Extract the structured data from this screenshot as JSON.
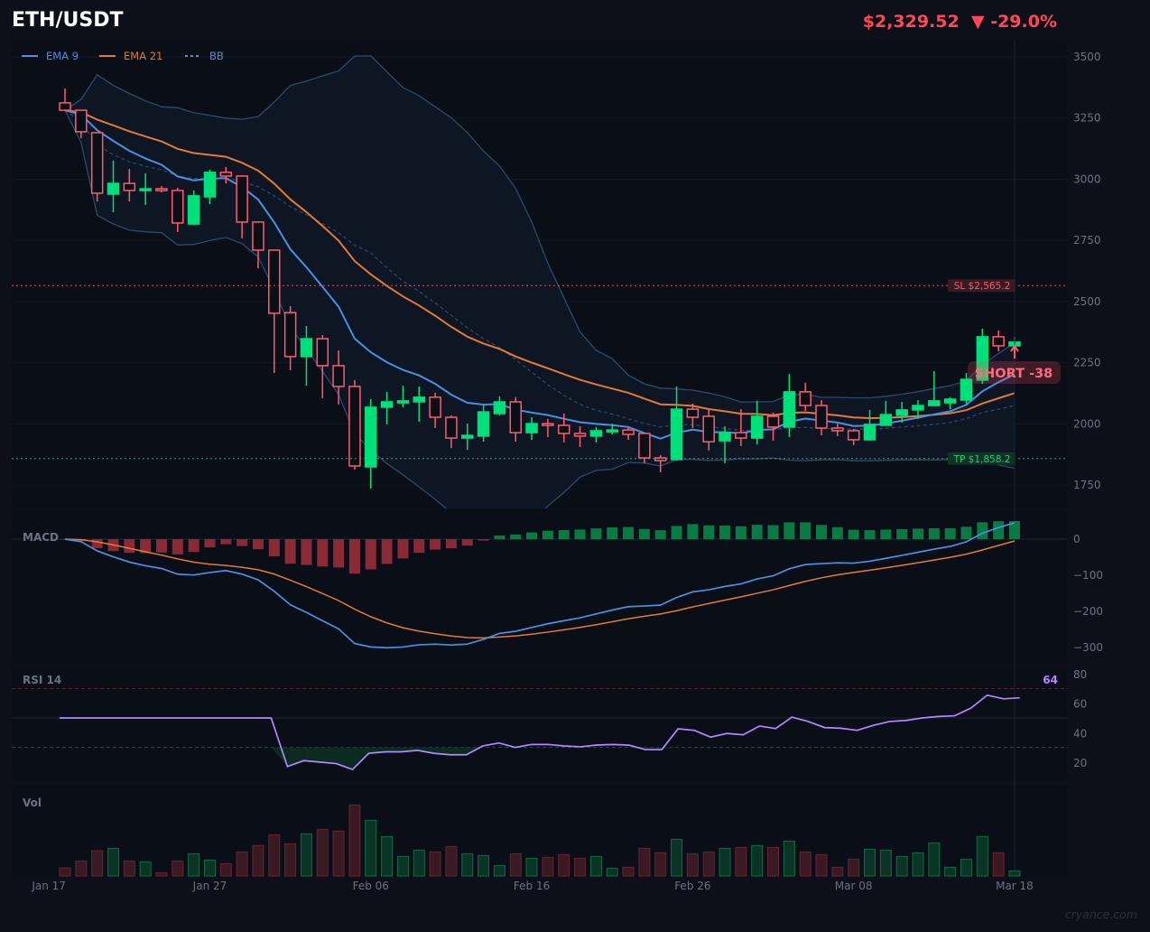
{
  "header": {
    "symbol": "ETH/USDT",
    "price": "$2,329.52",
    "change": "▼ -29.0%",
    "change_direction": "down"
  },
  "legend": [
    {
      "label": "EMA 9",
      "color": "#4a90e2",
      "style": "solid"
    },
    {
      "label": "EMA 21",
      "color": "#e07b39",
      "style": "solid"
    },
    {
      "label": "BB",
      "color": "#4a90e2",
      "style": "dashed"
    }
  ],
  "colors": {
    "bull": "#00e07a",
    "bear": "#ff5c6c",
    "rsi": "#b388ff",
    "macd": "#4a90e2",
    "signal": "#e07b39"
  },
  "watermark": "cryance.com",
  "chart_data": {
    "type": "candlestick",
    "title": "ETH/USDT",
    "x_tick_labels": [
      "Jan 17",
      "Jan 27",
      "Feb 06",
      "Feb 16",
      "Feb 26",
      "Mar 08",
      "Mar 18"
    ],
    "first_date": "Jan 18",
    "last_date": "Mar 18",
    "price_axis": {
      "ticks": [
        1750,
        2000,
        2250,
        2500,
        2750,
        3000,
        3250,
        3500
      ],
      "range": [
        1680,
        3570
      ]
    },
    "ohlc": [
      [
        3312,
        3371,
        3279,
        3282
      ],
      [
        3282,
        3282,
        3168,
        3194
      ],
      [
        3190,
        3190,
        2909,
        2943
      ],
      [
        2939,
        3076,
        2865,
        2983
      ],
      [
        2983,
        3042,
        2909,
        2954
      ],
      [
        2954,
        3024,
        2895,
        2961
      ],
      [
        2961,
        2972,
        2946,
        2954
      ],
      [
        2954,
        2965,
        2784,
        2821
      ],
      [
        2817,
        2954,
        2813,
        2932
      ],
      [
        2928,
        3039,
        2898,
        3028
      ],
      [
        3028,
        3050,
        2983,
        3013
      ],
      [
        3013,
        3016,
        2758,
        2825
      ],
      [
        2825,
        2825,
        2636,
        2710
      ],
      [
        2710,
        2710,
        2208,
        2452
      ],
      [
        2455,
        2481,
        2219,
        2275
      ],
      [
        2275,
        2400,
        2156,
        2348
      ],
      [
        2348,
        2363,
        2105,
        2238
      ],
      [
        2238,
        2300,
        2079,
        2153
      ],
      [
        2153,
        2179,
        1813,
        1828
      ],
      [
        1824,
        2101,
        1736,
        2068
      ],
      [
        2068,
        2131,
        1998,
        2090
      ],
      [
        2086,
        2156,
        2068,
        2094
      ],
      [
        2090,
        2153,
        2009,
        2109
      ],
      [
        2109,
        2127,
        1983,
        2027
      ],
      [
        2027,
        2035,
        1901,
        1942
      ],
      [
        1942,
        2001,
        1894,
        1953
      ],
      [
        1950,
        2075,
        1927,
        2049
      ],
      [
        2042,
        2112,
        2035,
        2090
      ],
      [
        2090,
        2109,
        1927,
        1964
      ],
      [
        1964,
        2027,
        1935,
        2001
      ],
      [
        2001,
        2020,
        1946,
        1994
      ],
      [
        1994,
        2042,
        1924,
        1961
      ],
      [
        1961,
        1990,
        1905,
        1950
      ],
      [
        1950,
        1987,
        1924,
        1972
      ],
      [
        1968,
        2001,
        1957,
        1975
      ],
      [
        1975,
        1987,
        1935,
        1957
      ],
      [
        1961,
        1961,
        1839,
        1861
      ],
      [
        1861,
        1872,
        1802,
        1850
      ],
      [
        1854,
        2153,
        1850,
        2060
      ],
      [
        2060,
        2083,
        1983,
        2027
      ],
      [
        2031,
        2064,
        1891,
        1927
      ],
      [
        1931,
        1990,
        1839,
        1964
      ],
      [
        1964,
        2060,
        1909,
        1942
      ],
      [
        1942,
        2094,
        1916,
        2031
      ],
      [
        2031,
        2046,
        1931,
        1987
      ],
      [
        1987,
        2204,
        1946,
        2131
      ],
      [
        2131,
        2168,
        2053,
        2075
      ],
      [
        2075,
        2097,
        1953,
        1983
      ],
      [
        1983,
        2001,
        1950,
        1972
      ],
      [
        1972,
        1979,
        1913,
        1935
      ],
      [
        1935,
        2057,
        1931,
        1998
      ],
      [
        1994,
        2094,
        1994,
        2038
      ],
      [
        2035,
        2090,
        2005,
        2057
      ],
      [
        2057,
        2097,
        2020,
        2075
      ],
      [
        2075,
        2216,
        2072,
        2094
      ],
      [
        2086,
        2109,
        2060,
        2101
      ],
      [
        2097,
        2208,
        2083,
        2182
      ],
      [
        2179,
        2389,
        2164,
        2356
      ],
      [
        2356,
        2382,
        2297,
        2319
      ],
      [
        2319,
        2356,
        2304,
        2334
      ]
    ],
    "indicators": {
      "ema_fast": 9,
      "ema_slow": 21,
      "bb_period": 20,
      "bb_mult": 2
    },
    "levels": [
      {
        "label": "SL $2,565.2",
        "value": 2565.2,
        "color": "#ff5c6c"
      },
      {
        "label": "TP $1,858.2",
        "value": 1858.2,
        "color": "#18d27a"
      }
    ],
    "signal": {
      "label": "SHORT  -38",
      "direction": "short"
    },
    "macd": {
      "label": "MACD",
      "fast": 12,
      "slow": 26,
      "signal": 9,
      "ticks": [
        0,
        -100,
        -200,
        -300
      ],
      "range": [
        -330,
        80
      ]
    },
    "rsi": {
      "label": "RSI 14",
      "current_label": "64",
      "ticks": [
        80,
        60,
        40,
        20
      ],
      "overbought": 70,
      "oversold": 30,
      "mid": 50,
      "values": [
        50,
        50,
        50,
        50,
        50,
        50,
        50,
        50,
        50,
        50,
        50,
        50,
        50,
        50,
        17,
        21,
        20,
        19,
        15,
        26,
        27,
        27,
        28,
        26,
        25,
        25,
        31,
        33,
        30,
        32,
        32,
        31,
        30.4,
        31.6,
        32,
        31.5,
        28.5,
        28.5,
        42.6,
        41.6,
        37,
        39.5,
        38.6,
        44.5,
        42.8,
        50.6,
        47.6,
        43.5,
        43,
        41.6,
        45,
        47.6,
        48.3,
        50,
        51,
        51.5,
        56.7,
        65.5,
        63,
        63.7
      ]
    },
    "volume": {
      "label": "Vol",
      "values": [
        27,
        50,
        84,
        92,
        50,
        47,
        11,
        50,
        74,
        53,
        41,
        80,
        101,
        137,
        107,
        140,
        155,
        149,
        236,
        185,
        131,
        65,
        86,
        80,
        98,
        74,
        68,
        35,
        74,
        59,
        62,
        71,
        59,
        65,
        26,
        29,
        92,
        77,
        122,
        74,
        80,
        92,
        95,
        101,
        95,
        116,
        80,
        71,
        29,
        56,
        89,
        86,
        65,
        77,
        110,
        29,
        56,
        131,
        77,
        17
      ]
    }
  }
}
